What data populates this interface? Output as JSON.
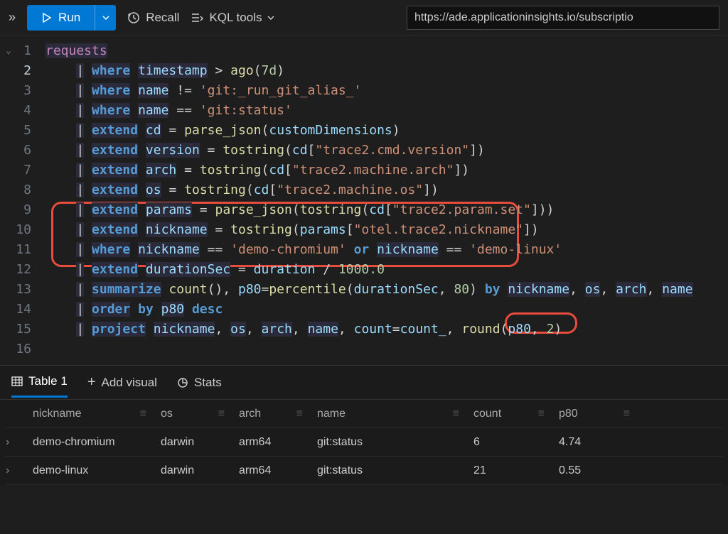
{
  "toolbar": {
    "run_label": "Run",
    "recall_label": "Recall",
    "kql_label": "KQL tools",
    "url": "https://ade.applicationinsights.io/subscriptio"
  },
  "editor": {
    "lines": [
      {
        "n": 1,
        "html": "<span class='tok-first'>requests</span>"
      },
      {
        "n": 2,
        "html": "<span class='tok-op hl-bg'>|</span> <span class='tok-kw hl-bg'>where</span> <span class='tok-ident hl-bg'>timestamp</span> <span class='tok-op'>&gt;</span> <span class='tok-func'>ago</span><span class='tok-punc'>(</span><span class='tok-num'>7d</span><span class='tok-punc'>)</span>"
      },
      {
        "n": 3,
        "html": "<span class='tok-op hl-bg'>|</span> <span class='tok-kw hl-bg'>where</span> <span class='tok-ident hl-bg'>name</span> <span class='tok-op'>!=</span> <span class='tok-str'>'git:_run_git_alias_'</span>"
      },
      {
        "n": 4,
        "html": "<span class='tok-op hl-bg'>|</span> <span class='tok-kw hl-bg'>where</span> <span class='tok-ident hl-bg'>name</span> <span class='tok-op'>==</span> <span class='tok-str'>'git:status'</span>"
      },
      {
        "n": 5,
        "html": "<span class='tok-op hl-bg'>|</span> <span class='tok-kw hl-bg'>extend</span> <span class='tok-ident hl-bg'>cd</span> <span class='tok-op'>=</span> <span class='tok-func'>parse_json</span><span class='tok-punc'>(</span><span class='tok-ident'>customDimensions</span><span class='tok-punc'>)</span>"
      },
      {
        "n": 6,
        "html": "<span class='tok-op hl-bg'>|</span> <span class='tok-kw hl-bg'>extend</span> <span class='tok-ident hl-bg'>version</span> <span class='tok-op'>=</span> <span class='tok-func'>tostring</span><span class='tok-punc'>(</span><span class='tok-ident'>cd</span><span class='tok-punc'>[</span><span class='tok-str'>\"trace2.cmd.version\"</span><span class='tok-punc'>])</span>"
      },
      {
        "n": 7,
        "html": "<span class='tok-op hl-bg'>|</span> <span class='tok-kw hl-bg'>extend</span> <span class='tok-ident hl-bg'>arch</span> <span class='tok-op'>=</span> <span class='tok-func'>tostring</span><span class='tok-punc'>(</span><span class='tok-ident'>cd</span><span class='tok-punc'>[</span><span class='tok-str'>\"trace2.machine.arch\"</span><span class='tok-punc'>])</span>"
      },
      {
        "n": 8,
        "html": "<span class='tok-op hl-bg'>|</span> <span class='tok-kw hl-bg'>extend</span> <span class='tok-ident hl-bg'>os</span> <span class='tok-op'>=</span> <span class='tok-func'>tostring</span><span class='tok-punc'>(</span><span class='tok-ident'>cd</span><span class='tok-punc'>[</span><span class='tok-str'>\"trace2.machine.os\"</span><span class='tok-punc'>])</span>"
      },
      {
        "n": 9,
        "html": "<span class='tok-op hl-bg'>|</span> <span class='tok-kw hl-bg'>extend</span> <span class='tok-ident hl-bg'>params</span> <span class='tok-op'>=</span> <span class='tok-func'>parse_json</span><span class='tok-punc'>(</span><span class='tok-func'>tostring</span><span class='tok-punc'>(</span><span class='tok-ident'>cd</span><span class='tok-punc'>[</span><span class='tok-str'>\"trace2.param.set\"</span><span class='tok-punc'>]))</span>"
      },
      {
        "n": 10,
        "html": "<span class='tok-op hl-bg'>|</span> <span class='tok-kw hl-bg'>extend</span> <span class='tok-ident hl-bg'>nickname</span> <span class='tok-op'>=</span> <span class='tok-func'>tostring</span><span class='tok-punc'>(</span><span class='tok-ident'>params</span><span class='tok-punc'>[</span><span class='tok-str'>\"otel.trace2.nickname\"</span><span class='tok-punc'>])</span>"
      },
      {
        "n": 11,
        "html": "<span class='tok-op hl-bg'>|</span> <span class='tok-kw hl-bg'>where</span> <span class='tok-ident hl-bg'>nickname</span> <span class='tok-op'>==</span> <span class='tok-str'>'demo-chromium'</span> <span class='tok-kw'>or</span> <span class='tok-ident hl-bg'>nickname</span> <span class='tok-op'>==</span> <span class='tok-str'>'demo-linux'</span>"
      },
      {
        "n": 12,
        "html": "<span class='tok-op hl-bg'>|</span> <span class='tok-kw hl-bg'>extend</span> <span class='tok-ident hl-bg'>durationSec</span> <span class='tok-op'>=</span> <span class='tok-ident'>duration</span> <span class='tok-op'>/</span> <span class='tok-num'>1000.0</span>"
      },
      {
        "n": 13,
        "html": "<span class='tok-op hl-bg'>|</span> <span class='tok-kw hl-bg'>summarize</span> <span class='tok-func'>count</span><span class='tok-punc'>(),</span> <span class='tok-ident'>p80</span><span class='tok-op'>=</span><span class='tok-func'>percentile</span><span class='tok-punc'>(</span><span class='tok-ident'>durationSec</span><span class='tok-punc'>,</span> <span class='tok-num'>80</span><span class='tok-punc'>)</span> <span class='tok-kw'>by</span> <span class='tok-ident hl-bg'>nickname</span><span class='tok-punc'>,</span> <span class='tok-ident hl-bg'>os</span><span class='tok-punc'>,</span> <span class='tok-ident hl-bg'>arch</span><span class='tok-punc'>,</span> <span class='tok-ident hl-bg'>name</span>"
      },
      {
        "n": 14,
        "html": "<span class='tok-op hl-bg'>|</span> <span class='tok-kw hl-bg'>order</span> <span class='tok-kw'>by</span> <span class='tok-ident hl-bg'>p80</span> <span class='tok-kw'>desc</span>"
      },
      {
        "n": 15,
        "html": "<span class='tok-op hl-bg'>|</span> <span class='tok-kw hl-bg'>project</span> <span class='tok-ident hl-bg'>nickname</span><span class='tok-punc'>,</span> <span class='tok-ident hl-bg'>os</span><span class='tok-punc'>,</span> <span class='tok-ident hl-bg'>arch</span><span class='tok-punc'>,</span> <span class='tok-ident hl-bg'>name</span><span class='tok-punc'>,</span> <span class='tok-ident'>count</span><span class='tok-op'>=</span><span class='tok-ident'>count_</span><span class='tok-punc'>,</span> <span class='tok-func'>round</span><span class='tok-punc'>(</span><span class='tok-ident'>p80</span><span class='tok-punc'>,</span> <span class='tok-num'>2</span><span class='tok-punc'>)</span>"
      },
      {
        "n": 16,
        "html": ""
      }
    ],
    "active_line": 2
  },
  "results": {
    "tabs": {
      "table": "Table 1",
      "addvisual": "Add visual",
      "stats": "Stats"
    },
    "columns": [
      "nickname",
      "os",
      "arch",
      "name",
      "count",
      "p80"
    ],
    "rows": [
      {
        "nickname": "demo-chromium",
        "os": "darwin",
        "arch": "arm64",
        "name": "git:status",
        "count": "6",
        "p80": "4.74"
      },
      {
        "nickname": "demo-linux",
        "os": "darwin",
        "arch": "arm64",
        "name": "git:status",
        "count": "21",
        "p80": "0.55"
      }
    ]
  },
  "colors": {
    "accent": "#0078d4",
    "annotation": "#e74c3c",
    "background": "#1e1e1e"
  }
}
